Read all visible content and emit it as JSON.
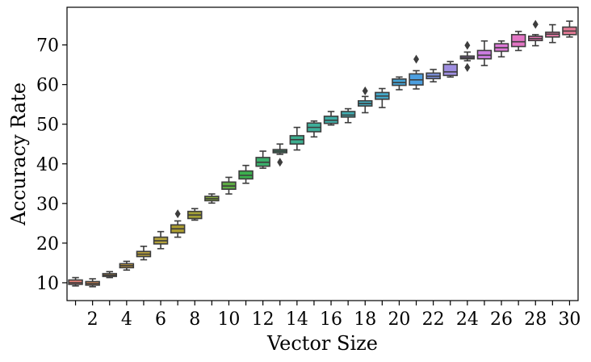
{
  "chart_data": {
    "type": "box",
    "xlabel": "Vector Size",
    "ylabel": "Accuracy Rate",
    "ylim": [
      5.5,
      79.5
    ],
    "yticks": [
      10,
      20,
      30,
      40,
      50,
      60,
      70
    ],
    "xlim": [
      0.5,
      30.5
    ],
    "xticks": [
      2,
      4,
      6,
      8,
      10,
      12,
      14,
      16,
      18,
      20,
      22,
      24,
      26,
      28,
      30
    ],
    "grid": false,
    "legend": "none",
    "boxes": [
      {
        "x": 1,
        "color": "#e47f75",
        "whislo": 9.2,
        "q1": 9.6,
        "med": 10.0,
        "q3": 10.7,
        "whishi": 11.3,
        "fliers": []
      },
      {
        "x": 2,
        "color": "#d88b55",
        "whislo": 9.0,
        "q1": 9.4,
        "med": 9.8,
        "q3": 10.3,
        "whishi": 11.0,
        "fliers": []
      },
      {
        "x": 3,
        "color": "#d39440",
        "whislo": 11.3,
        "q1": 11.6,
        "med": 11.9,
        "q3": 12.3,
        "whishi": 12.8,
        "fliers": []
      },
      {
        "x": 4,
        "color": "#c69c3c",
        "whislo": 13.2,
        "q1": 13.8,
        "med": 14.3,
        "q3": 14.8,
        "whishi": 15.4,
        "fliers": []
      },
      {
        "x": 5,
        "color": "#baa13a",
        "whislo": 15.8,
        "q1": 16.6,
        "med": 17.2,
        "q3": 17.9,
        "whishi": 19.2,
        "fliers": []
      },
      {
        "x": 6,
        "color": "#b3a23a",
        "whislo": 18.6,
        "q1": 19.8,
        "med": 20.6,
        "q3": 21.5,
        "whishi": 22.9,
        "fliers": []
      },
      {
        "x": 7,
        "color": "#ab9c30",
        "whislo": 21.5,
        "q1": 22.6,
        "med": 23.6,
        "q3": 24.6,
        "whishi": 25.6,
        "fliers": [
          27.4
        ]
      },
      {
        "x": 8,
        "color": "#a29f36",
        "whislo": 25.8,
        "q1": 26.2,
        "med": 27.1,
        "q3": 28.0,
        "whishi": 28.7,
        "fliers": []
      },
      {
        "x": 9,
        "color": "#86a93c",
        "whislo": 30.1,
        "q1": 30.7,
        "med": 31.2,
        "q3": 31.8,
        "whishi": 32.4,
        "fliers": []
      },
      {
        "x": 10,
        "color": "#5ead44",
        "whislo": 32.4,
        "q1": 33.6,
        "med": 34.4,
        "q3": 35.4,
        "whishi": 36.6,
        "fliers": []
      },
      {
        "x": 11,
        "color": "#3cb04e",
        "whislo": 35.1,
        "q1": 36.2,
        "med": 37.1,
        "q3": 38.2,
        "whishi": 39.6,
        "fliers": []
      },
      {
        "x": 12,
        "color": "#3bb06c",
        "whislo": 38.9,
        "q1": 39.4,
        "med": 40.4,
        "q3": 41.6,
        "whishi": 43.2,
        "fliers": []
      },
      {
        "x": 13,
        "color": "#3caf81",
        "whislo": 42.4,
        "q1": 42.8,
        "med": 43.2,
        "q3": 43.6,
        "whishi": 45.0,
        "fliers": [
          40.4
        ]
      },
      {
        "x": 14,
        "color": "#3dae8f",
        "whislo": 43.5,
        "q1": 45.0,
        "med": 46.1,
        "q3": 47.1,
        "whishi": 49.2,
        "fliers": []
      },
      {
        "x": 15,
        "color": "#3eae9a",
        "whislo": 46.8,
        "q1": 48.1,
        "med": 49.2,
        "q3": 50.3,
        "whishi": 50.8,
        "fliers": []
      },
      {
        "x": 16,
        "color": "#3eada6",
        "whislo": 49.8,
        "q1": 50.2,
        "med": 51.0,
        "q3": 52.0,
        "whishi": 53.2,
        "fliers": []
      },
      {
        "x": 17,
        "color": "#40acb0",
        "whislo": 50.4,
        "q1": 51.8,
        "med": 52.3,
        "q3": 53.2,
        "whishi": 53.9,
        "fliers": []
      },
      {
        "x": 18,
        "color": "#41aabd",
        "whislo": 52.9,
        "q1": 54.6,
        "med": 55.2,
        "q3": 55.9,
        "whishi": 57.0,
        "fliers": [
          58.4
        ]
      },
      {
        "x": 19,
        "color": "#43a7c8",
        "whislo": 54.2,
        "q1": 56.3,
        "med": 57.1,
        "q3": 58.0,
        "whishi": 59.0,
        "fliers": []
      },
      {
        "x": 20,
        "color": "#47a4d6",
        "whislo": 58.7,
        "q1": 59.8,
        "med": 60.5,
        "q3": 61.4,
        "whishi": 61.9,
        "fliers": []
      },
      {
        "x": 21,
        "color": "#4c9fe0",
        "whislo": 58.9,
        "q1": 59.9,
        "med": 61.2,
        "q3": 62.7,
        "whishi": 63.5,
        "fliers": [
          66.4
        ]
      },
      {
        "x": 22,
        "color": "#7d93e0",
        "whislo": 60.7,
        "q1": 61.5,
        "med": 62.1,
        "q3": 62.9,
        "whishi": 63.8,
        "fliers": []
      },
      {
        "x": 23,
        "color": "#9f8ee0",
        "whislo": 61.9,
        "q1": 62.3,
        "med": 63.2,
        "q3": 65.1,
        "whishi": 65.8,
        "fliers": []
      },
      {
        "x": 24,
        "color": "#b686e0",
        "whislo": 66.0,
        "q1": 66.5,
        "med": 66.8,
        "q3": 67.2,
        "whishi": 68.2,
        "fliers": [
          64.3,
          69.9
        ]
      },
      {
        "x": 25,
        "color": "#cc7de0",
        "whislo": 64.8,
        "q1": 66.5,
        "med": 67.4,
        "q3": 68.6,
        "whishi": 71.0,
        "fliers": []
      },
      {
        "x": 26,
        "color": "#dc78d6",
        "whislo": 67.0,
        "q1": 68.4,
        "med": 69.3,
        "q3": 70.3,
        "whishi": 71.0,
        "fliers": []
      },
      {
        "x": 27,
        "color": "#e275c4",
        "whislo": 68.6,
        "q1": 69.6,
        "med": 70.8,
        "q3": 72.6,
        "whishi": 73.4,
        "fliers": []
      },
      {
        "x": 28,
        "color": "#e276b3",
        "whislo": 69.8,
        "q1": 71.1,
        "med": 71.6,
        "q3": 72.2,
        "whishi": 72.6,
        "fliers": [
          75.2
        ]
      },
      {
        "x": 29,
        "color": "#e479a4",
        "whislo": 70.6,
        "q1": 72.0,
        "med": 72.7,
        "q3": 73.2,
        "whishi": 75.1,
        "fliers": []
      },
      {
        "x": 30,
        "color": "#e67b96",
        "whislo": 72.0,
        "q1": 72.6,
        "med": 73.5,
        "q3": 74.5,
        "whishi": 76.0,
        "fliers": []
      }
    ]
  }
}
